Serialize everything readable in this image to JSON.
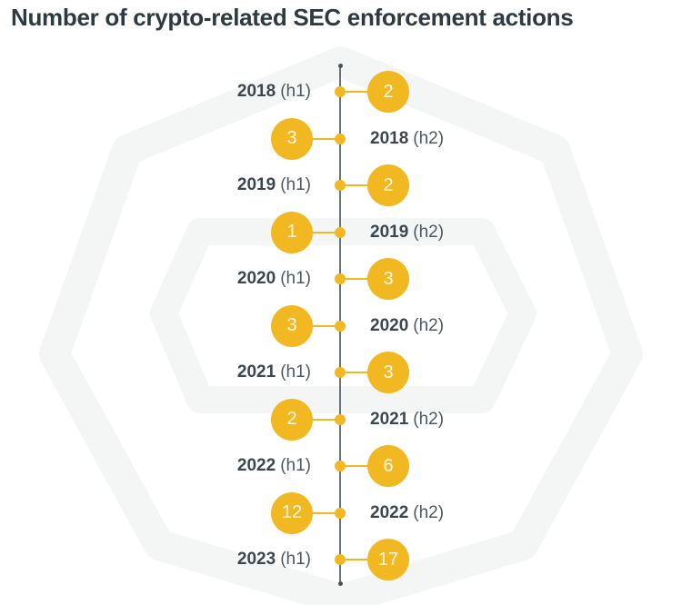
{
  "title": "Number of crypto-related SEC enforcement actions",
  "colors": {
    "accent": "#f2b821",
    "spine": "#6b7378",
    "label_text": "#3c474d",
    "background_shape": "#f4f5f5"
  },
  "rows": [
    {
      "year": "2018",
      "half": "(h1)",
      "value": "2",
      "bubble_side": "right"
    },
    {
      "year": "2018",
      "half": "(h2)",
      "value": "3",
      "bubble_side": "left"
    },
    {
      "year": "2019",
      "half": "(h1)",
      "value": "2",
      "bubble_side": "right"
    },
    {
      "year": "2019",
      "half": "(h2)",
      "value": "1",
      "bubble_side": "left"
    },
    {
      "year": "2020",
      "half": "(h1)",
      "value": "3",
      "bubble_side": "right"
    },
    {
      "year": "2020",
      "half": "(h2)",
      "value": "3",
      "bubble_side": "left"
    },
    {
      "year": "2021",
      "half": "(h1)",
      "value": "3",
      "bubble_side": "right"
    },
    {
      "year": "2021",
      "half": "(h2)",
      "value": "2",
      "bubble_side": "left"
    },
    {
      "year": "2022",
      "half": "(h1)",
      "value": "6",
      "bubble_side": "right"
    },
    {
      "year": "2022",
      "half": "(h2)",
      "value": "12",
      "bubble_side": "left"
    },
    {
      "year": "2023",
      "half": "(h1)",
      "value": "17",
      "bubble_side": "right"
    }
  ],
  "chart_data": {
    "type": "timeline",
    "title": "Number of crypto-related SEC enforcement actions",
    "categories": [
      "2018 (h1)",
      "2018 (h2)",
      "2019 (h1)",
      "2019 (h2)",
      "2020 (h1)",
      "2020 (h2)",
      "2021 (h1)",
      "2021 (h2)",
      "2022 (h1)",
      "2022 (h2)",
      "2023 (h1)"
    ],
    "values": [
      2,
      3,
      2,
      1,
      3,
      3,
      3,
      2,
      6,
      12,
      17
    ],
    "xlabel": "",
    "ylabel": "",
    "orientation": "vertical",
    "legend": "none",
    "grid": false
  }
}
